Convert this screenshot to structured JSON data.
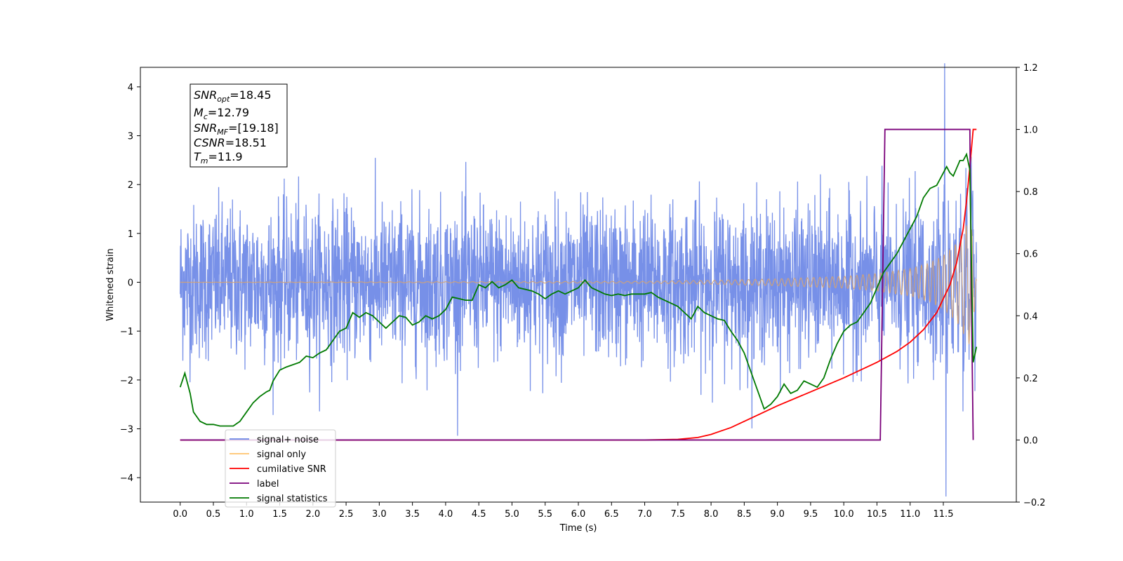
{
  "chart_data": {
    "type": "line",
    "xlabel": "Time (s)",
    "ylabel": "Whitened strain",
    "xlim": [
      -0.6,
      12.6
    ],
    "ylim": [
      -4.5,
      4.4
    ],
    "y2lim": [
      -0.2,
      1.2
    ],
    "grid": false,
    "x_ticks": [
      "0.0",
      "0.5",
      "1.0",
      "1.5",
      "2.0",
      "2.5",
      "3.0",
      "3.5",
      "4.0",
      "4.5",
      "5.0",
      "5.5",
      "6.0",
      "6.5",
      "7.0",
      "7.5",
      "8.0",
      "8.5",
      "9.0",
      "9.5",
      "10.0",
      "10.5",
      "11.0",
      "11.5"
    ],
    "y_ticks": [
      "4",
      "3",
      "2",
      "1",
      "0",
      "−1",
      "−2",
      "−3",
      "−4"
    ],
    "y2_ticks": [
      "1.2",
      "1.0",
      "0.8",
      "0.6",
      "0.4",
      "0.2",
      "0.0",
      "−0.2"
    ],
    "info_box": [
      {
        "base": "SNR",
        "sub": "opt",
        "value": "=18.45"
      },
      {
        "base": "M",
        "sub": "c",
        "value": "=12.79"
      },
      {
        "base": "SNR",
        "sub": "MF",
        "value": "=[19.18]"
      },
      {
        "base": "CSNR",
        "sub": "",
        "value": "=18.51"
      },
      {
        "base": "T",
        "sub": "m",
        "value": "=11.9"
      }
    ],
    "legend": {
      "placement": "lower-left",
      "entries": [
        {
          "label": "signal+ noise",
          "color": "#6b87e6"
        },
        {
          "label": "signal only",
          "color": "#ffc36b"
        },
        {
          "label": "cumilative SNR",
          "color": "#ff0000"
        },
        {
          "label": "label",
          "color": "#7a007a"
        },
        {
          "label": "signal statistics",
          "color": "#007a00"
        }
      ]
    },
    "noise_envelope": {
      "color": "#6b87e6",
      "x": [
        0.0,
        12.0
      ],
      "typical_range": [
        -1.6,
        1.6
      ],
      "max_spike": 4.0,
      "min_spike": -4.1
    },
    "signal_only": {
      "color": "#d4a373",
      "amplitude_envelope": {
        "x": [
          0.0,
          7.0,
          8.0,
          9.0,
          10.0,
          10.5,
          11.0,
          11.3,
          11.5,
          11.7,
          11.8,
          11.9,
          11.95,
          12.0
        ],
        "y": [
          0.0,
          0.02,
          0.04,
          0.07,
          0.12,
          0.18,
          0.28,
          0.4,
          0.55,
          0.8,
          1.05,
          1.3,
          0.9,
          0.05
        ]
      }
    },
    "series": [
      {
        "name": "cumilative SNR",
        "axis": "right",
        "color": "#ff0000",
        "x": [
          0.0,
          7.0,
          7.5,
          7.8,
          8.0,
          8.3,
          8.6,
          9.0,
          9.5,
          10.0,
          10.5,
          10.8,
          11.0,
          11.2,
          11.4,
          11.6,
          11.7,
          11.8,
          11.85,
          11.9,
          11.95,
          12.0
        ],
        "y": [
          0.0,
          0.0,
          0.002,
          0.008,
          0.018,
          0.04,
          0.07,
          0.11,
          0.155,
          0.2,
          0.25,
          0.285,
          0.315,
          0.355,
          0.41,
          0.5,
          0.57,
          0.68,
          0.77,
          0.88,
          1.0,
          1.0
        ]
      },
      {
        "name": "label",
        "axis": "right",
        "color": "#7a007a",
        "x": [
          0.0,
          10.55,
          10.62,
          11.9,
          11.92,
          11.95
        ],
        "y": [
          0.0,
          0.0,
          1.0,
          1.0,
          0.5,
          0.0
        ]
      },
      {
        "name": "signal statistics",
        "axis": "right",
        "color": "#007a00",
        "x": [
          0.0,
          0.07,
          0.15,
          0.2,
          0.3,
          0.4,
          0.5,
          0.6,
          0.8,
          0.9,
          1.0,
          1.1,
          1.2,
          1.3,
          1.35,
          1.4,
          1.5,
          1.6,
          1.8,
          1.9,
          2.0,
          2.1,
          2.2,
          2.3,
          2.4,
          2.5,
          2.6,
          2.7,
          2.8,
          2.9,
          3.0,
          3.1,
          3.2,
          3.3,
          3.4,
          3.5,
          3.6,
          3.7,
          3.8,
          3.9,
          4.0,
          4.1,
          4.2,
          4.3,
          4.4,
          4.5,
          4.6,
          4.7,
          4.8,
          4.9,
          5.0,
          5.1,
          5.2,
          5.3,
          5.4,
          5.5,
          5.6,
          5.7,
          5.8,
          5.9,
          6.0,
          6.1,
          6.2,
          6.3,
          6.4,
          6.5,
          6.6,
          6.7,
          6.8,
          6.9,
          7.0,
          7.1,
          7.2,
          7.3,
          7.4,
          7.5,
          7.6,
          7.7,
          7.8,
          7.9,
          8.0,
          8.1,
          8.2,
          8.3,
          8.4,
          8.5,
          8.6,
          8.7,
          8.8,
          8.9,
          9.0,
          9.1,
          9.2,
          9.3,
          9.4,
          9.5,
          9.6,
          9.7,
          9.8,
          9.9,
          10.0,
          10.1,
          10.2,
          10.3,
          10.4,
          10.5,
          10.6,
          10.7,
          10.8,
          10.9,
          11.0,
          11.1,
          11.2,
          11.3,
          11.4,
          11.5,
          11.55,
          11.6,
          11.65,
          11.7,
          11.75,
          11.8,
          11.85,
          11.9,
          11.95,
          12.0
        ],
        "y": [
          0.17,
          0.215,
          0.15,
          0.09,
          0.06,
          0.05,
          0.05,
          0.045,
          0.045,
          0.06,
          0.09,
          0.12,
          0.14,
          0.155,
          0.16,
          0.19,
          0.225,
          0.235,
          0.25,
          0.27,
          0.265,
          0.28,
          0.29,
          0.32,
          0.35,
          0.36,
          0.41,
          0.395,
          0.41,
          0.4,
          0.38,
          0.36,
          0.38,
          0.4,
          0.395,
          0.37,
          0.38,
          0.4,
          0.39,
          0.4,
          0.42,
          0.46,
          0.455,
          0.45,
          0.45,
          0.5,
          0.49,
          0.51,
          0.49,
          0.5,
          0.515,
          0.49,
          0.485,
          0.48,
          0.47,
          0.455,
          0.47,
          0.48,
          0.47,
          0.48,
          0.49,
          0.515,
          0.49,
          0.48,
          0.47,
          0.465,
          0.47,
          0.465,
          0.47,
          0.47,
          0.47,
          0.475,
          0.46,
          0.45,
          0.44,
          0.43,
          0.41,
          0.39,
          0.43,
          0.41,
          0.4,
          0.39,
          0.385,
          0.35,
          0.32,
          0.28,
          0.22,
          0.16,
          0.1,
          0.115,
          0.14,
          0.18,
          0.15,
          0.16,
          0.19,
          0.18,
          0.17,
          0.2,
          0.26,
          0.31,
          0.35,
          0.37,
          0.38,
          0.41,
          0.44,
          0.49,
          0.54,
          0.57,
          0.6,
          0.64,
          0.68,
          0.72,
          0.78,
          0.81,
          0.82,
          0.86,
          0.88,
          0.86,
          0.85,
          0.875,
          0.9,
          0.9,
          0.92,
          0.87,
          0.25,
          0.3
        ]
      }
    ]
  }
}
